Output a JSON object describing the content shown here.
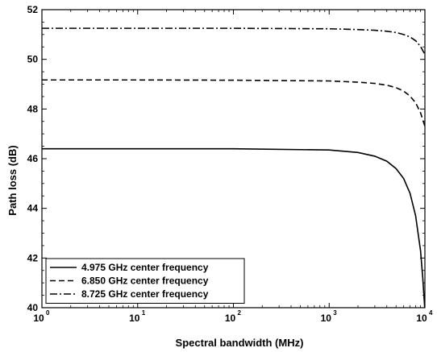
{
  "chart_data": {
    "type": "line",
    "title": "",
    "xlabel": "Spectral bandwidth (MHz)",
    "ylabel": "Path loss (dB)",
    "xscale": "log",
    "xlim": [
      1,
      10000
    ],
    "ylim": [
      40,
      52
    ],
    "xticks": [
      {
        "base": "10",
        "exp": "0",
        "value": 1
      },
      {
        "base": "10",
        "exp": "1",
        "value": 10
      },
      {
        "base": "10",
        "exp": "2",
        "value": 100
      },
      {
        "base": "10",
        "exp": "3",
        "value": 1000
      },
      {
        "base": "10",
        "exp": "4",
        "value": 10000
      }
    ],
    "yticks": [
      "40",
      "42",
      "44",
      "46",
      "48",
      "50",
      "52"
    ],
    "grid": false,
    "legend_position": "bottom-left",
    "series": [
      {
        "name": "4.975 GHz center frequency",
        "dash": "solid",
        "x": [
          1,
          10,
          100,
          1000,
          2000,
          3000,
          4000,
          5000,
          6000,
          7000,
          8000,
          9000,
          9500,
          9950
        ],
        "y": [
          46.4,
          46.4,
          46.4,
          46.35,
          46.25,
          46.1,
          45.9,
          45.6,
          45.2,
          44.6,
          43.7,
          42.3,
          41.2,
          40.0
        ]
      },
      {
        "name": "6.850 GHz center frequency",
        "dash": "dashed",
        "x": [
          1,
          10,
          100,
          1000,
          2000,
          3000,
          4000,
          5000,
          6000,
          7000,
          8000,
          9000,
          10000
        ],
        "y": [
          49.17,
          49.17,
          49.16,
          49.13,
          49.08,
          49.03,
          48.96,
          48.86,
          48.72,
          48.52,
          48.25,
          47.85,
          47.3
        ]
      },
      {
        "name": "8.725 GHz center frequency",
        "dash": "dashdot",
        "x": [
          1,
          10,
          100,
          1000,
          2000,
          3000,
          4000,
          5000,
          6000,
          7000,
          8000,
          9000,
          10000
        ],
        "y": [
          51.25,
          51.25,
          51.25,
          51.23,
          51.2,
          51.17,
          51.13,
          51.08,
          51.0,
          50.9,
          50.75,
          50.52,
          50.2
        ]
      }
    ]
  }
}
